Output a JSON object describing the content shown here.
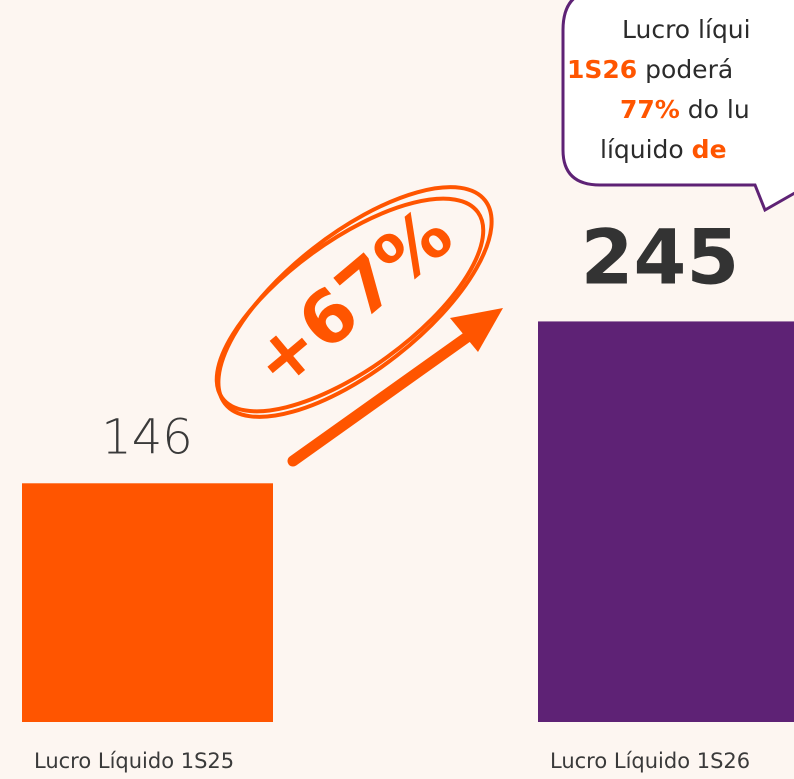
{
  "chart_data": {
    "type": "bar",
    "categories": [
      "Lucro Líquido 1S25",
      "Lucro Líquido 1S26"
    ],
    "values": [
      146,
      245
    ],
    "colors": [
      "#FF5500",
      "#5E2275"
    ],
    "annotation": "+67%",
    "callout": {
      "lines": [
        [
          {
            "text": "Lucro líqui"
          }
        ],
        [
          {
            "text": "1S26",
            "highlight": true
          },
          {
            "text": " poderá"
          }
        ],
        [
          {
            "text": "77%",
            "highlight": true
          },
          {
            "text": " do lu"
          }
        ],
        [
          {
            "text": "líquido "
          },
          {
            "text": "de",
            "highlight": true
          }
        ]
      ]
    }
  }
}
